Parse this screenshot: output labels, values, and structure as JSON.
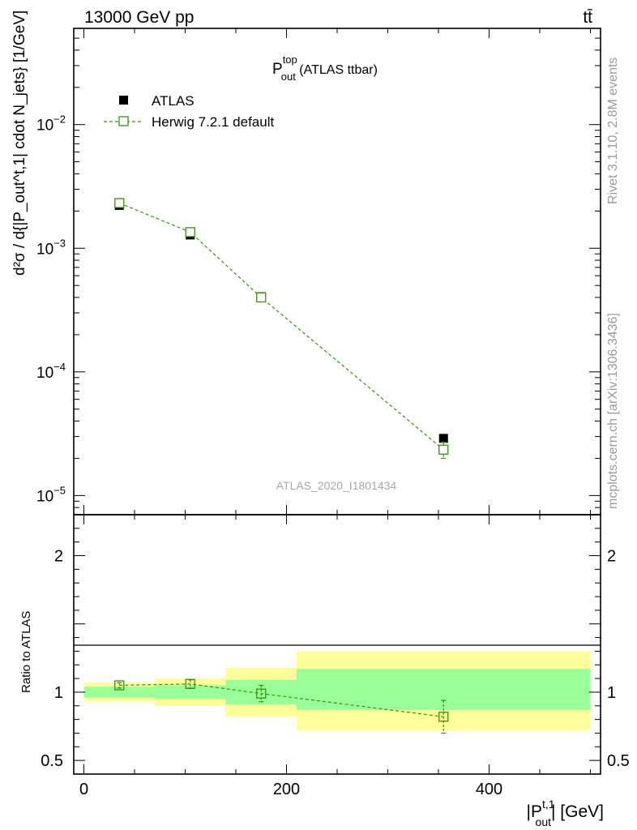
{
  "header": {
    "left": "13000 GeV pp",
    "right": "tt̄"
  },
  "side_labels": {
    "rivet": "Rivet 3.1.10, 2.8M events",
    "mcplots": "mcplots.cern.ch [arXiv:1306.3436]"
  },
  "main_panel": {
    "title_base": "P",
    "title_sup": "top",
    "title_sub": "out",
    "title_rest": " (ATLAS ttbar)",
    "watermark": "ATLAS_2020_I1801434",
    "ylabel": "d²σ / d{|P_out^t,1| cdot N_jets} [1/GeV]"
  },
  "legend": {
    "data_label": "ATLAS",
    "mc_label": "Herwig 7.2.1 default"
  },
  "ratio_panel": {
    "ylabel": "Ratio to ATLAS"
  },
  "colors": {
    "data": "#000000",
    "mc": "#3a8f0e",
    "band_inner": "#99ff99",
    "band_outer": "#ffff99"
  },
  "chart_data": {
    "type": "scatter",
    "xlabel_base": "|P",
    "xlabel_sup": "t,1",
    "xlabel_sub": "out",
    "xlabel_rest": "| [GeV]",
    "xlim": [
      -10,
      510
    ],
    "x_ticks": [
      "0",
      "200",
      "400"
    ],
    "main_y_scale": "log",
    "main_ylim": [
      7e-06,
      0.06
    ],
    "main_y_ticks": [
      {
        "mant": "10",
        "exp": "−2"
      },
      {
        "mant": "10",
        "exp": "−3"
      },
      {
        "mant": "10",
        "exp": "−4"
      },
      {
        "mant": "10",
        "exp": "−5"
      }
    ],
    "ratio_ylim": [
      0.4,
      2.3
    ],
    "ratio_y_ticks": [
      "2",
      "1",
      "0.5"
    ],
    "bins": [
      {
        "low": 0,
        "high": 70,
        "x": 35
      },
      {
        "low": 70,
        "high": 140,
        "x": 105
      },
      {
        "low": 140,
        "high": 210,
        "x": 175
      },
      {
        "low": 210,
        "high": 500,
        "x": 355
      }
    ],
    "series": [
      {
        "name": "ATLAS",
        "values": [
          0.00222,
          0.00128,
          0.000405,
          2.9e-05
        ]
      },
      {
        "name": "Herwig 7.2.1 default",
        "values": [
          0.00232,
          0.00135,
          0.0004,
          2.35e-05
        ],
        "errors": [
          7e-05,
          4e-05,
          1.5e-05,
          3.5e-06
        ]
      }
    ],
    "ratio": {
      "values": [
        1.05,
        1.06,
        0.99,
        0.82
      ],
      "errors": [
        0.02,
        0.03,
        0.06,
        0.12
      ],
      "band_inner": [
        [
          0.96,
          1.04
        ],
        [
          0.95,
          1.05
        ],
        [
          0.91,
          1.09
        ],
        [
          0.87,
          1.17
        ]
      ],
      "band_outer": [
        [
          0.93,
          1.07
        ],
        [
          0.9,
          1.1
        ],
        [
          0.82,
          1.18
        ],
        [
          0.72,
          1.3
        ]
      ]
    }
  }
}
